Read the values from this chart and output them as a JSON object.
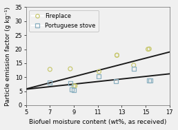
{
  "title": "",
  "xlabel": "Biofuel moisture content (wt%, as received)",
  "ylabel": "Particle emission factor (g kg⁻¹)",
  "xlim": [
    5,
    17
  ],
  "ylim": [
    0,
    35
  ],
  "xticks": [
    5,
    7,
    9,
    11,
    13,
    15,
    17
  ],
  "yticks": [
    0,
    5,
    10,
    15,
    20,
    25,
    30,
    35
  ],
  "fireplace_x": [
    7.0,
    8.7,
    9.0,
    9.1,
    11.1,
    12.6,
    12.6,
    14.0,
    15.2,
    15.3
  ],
  "fireplace_y": [
    12.8,
    13.0,
    6.9,
    6.9,
    12.0,
    17.8,
    17.9,
    14.3,
    20.0,
    20.1
  ],
  "stove_x": [
    7.0,
    8.7,
    8.8,
    9.0,
    11.1,
    12.5,
    14.0,
    15.3,
    15.4
  ],
  "stove_y": [
    8.0,
    7.9,
    5.7,
    5.3,
    10.3,
    8.5,
    13.0,
    8.8,
    8.9
  ],
  "fireplace_trendline_x": [
    5,
    17
  ],
  "fireplace_trendline_y": [
    5.8,
    19.0
  ],
  "stove_trendline_x": [
    5,
    17
  ],
  "stove_trendline_y": [
    5.7,
    11.2
  ],
  "fireplace_color": "#c8c870",
  "stove_color": "#8ab0c0",
  "trendline_color": "#1a1a1a",
  "background_color": "#f0f0f0",
  "legend_labels": [
    "Fireplace",
    "Portuguese stove"
  ],
  "marker_size": 18,
  "fontsize": 6.5
}
